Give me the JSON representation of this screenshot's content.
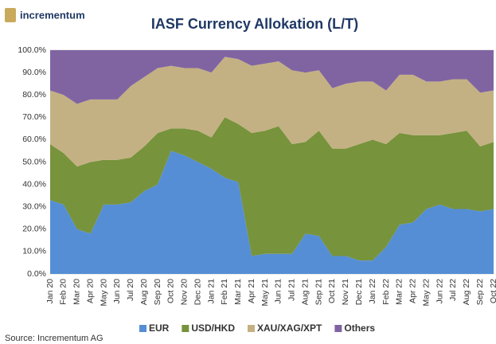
{
  "brand": "incrementum",
  "source": "Source: Incrementum AG",
  "chart_data": {
    "type": "stacked_area",
    "title": "IASF Currency Allokation (L/T)",
    "categories": [
      "Jan 20",
      "Feb 20",
      "Mar 20",
      "Apr 20",
      "May 20",
      "Jun 20",
      "Jul 20",
      "Aug 20",
      "Sep 20",
      "Oct 20",
      "Nov 20",
      "Dec 20",
      "Jan 21",
      "Feb 21",
      "Mar 21",
      "Apr 21",
      "May 21",
      "Jun 21",
      "Jul 21",
      "Aug 21",
      "Sep 21",
      "Oct 21",
      "Nov 21",
      "Dec 21",
      "Jan 22",
      "Feb 22",
      "Mar 22",
      "Apr 22",
      "May 22",
      "Jun 22",
      "Jul 22",
      "Aug 22",
      "Sep 22",
      "Oct 22"
    ],
    "series": [
      {
        "name": "EUR",
        "color": "#558ed5",
        "values": [
          33,
          31,
          20,
          18,
          31,
          31,
          32,
          37,
          40,
          55,
          53,
          50,
          47,
          43,
          41,
          8,
          9,
          9,
          9,
          18,
          17,
          8,
          8,
          6,
          6,
          12,
          22,
          23,
          29,
          31,
          29,
          29,
          28,
          29
        ]
      },
      {
        "name": "USD/HKD",
        "color": "#77933c",
        "values": [
          25,
          23,
          28,
          32,
          20,
          20,
          20,
          20,
          23,
          10,
          12,
          14,
          14,
          27,
          26,
          55,
          55,
          57,
          49,
          41,
          47,
          48,
          48,
          52,
          54,
          46,
          41,
          39,
          33,
          31,
          34,
          35,
          29,
          30
        ]
      },
      {
        "name": "XAU/XAG/XPT",
        "color": "#c4b183",
        "values": [
          24,
          26,
          28,
          28,
          27,
          27,
          32,
          31,
          29,
          28,
          27,
          28,
          29,
          27,
          29,
          30,
          30,
          29,
          33,
          31,
          27,
          27,
          29,
          28,
          26,
          24,
          26,
          27,
          24,
          24,
          24,
          23,
          24,
          23
        ]
      },
      {
        "name": "Others",
        "color": "#8064a2",
        "values": [
          18,
          20,
          24,
          22,
          22,
          22,
          16,
          12,
          8,
          7,
          8,
          8,
          10,
          3,
          4,
          7,
          6,
          5,
          9,
          10,
          9,
          17,
          15,
          14,
          14,
          18,
          11,
          11,
          14,
          14,
          13,
          13,
          19,
          18
        ]
      }
    ],
    "ylim": [
      0,
      100
    ],
    "yticks": [
      {
        "value": 0,
        "label": "0.0%"
      },
      {
        "value": 10,
        "label": "10.0%"
      },
      {
        "value": 20,
        "label": "20.0%"
      },
      {
        "value": 30,
        "label": "30.0%"
      },
      {
        "value": 40,
        "label": "40.0%"
      },
      {
        "value": 50,
        "label": "50.0%"
      },
      {
        "value": 60,
        "label": "60.0%"
      },
      {
        "value": 70,
        "label": "70.0%"
      },
      {
        "value": 80,
        "label": "80.0%"
      },
      {
        "value": 90,
        "label": "90.0%"
      },
      {
        "value": 100,
        "label": "100.0%"
      }
    ],
    "grid": true,
    "legend": "bottom"
  }
}
